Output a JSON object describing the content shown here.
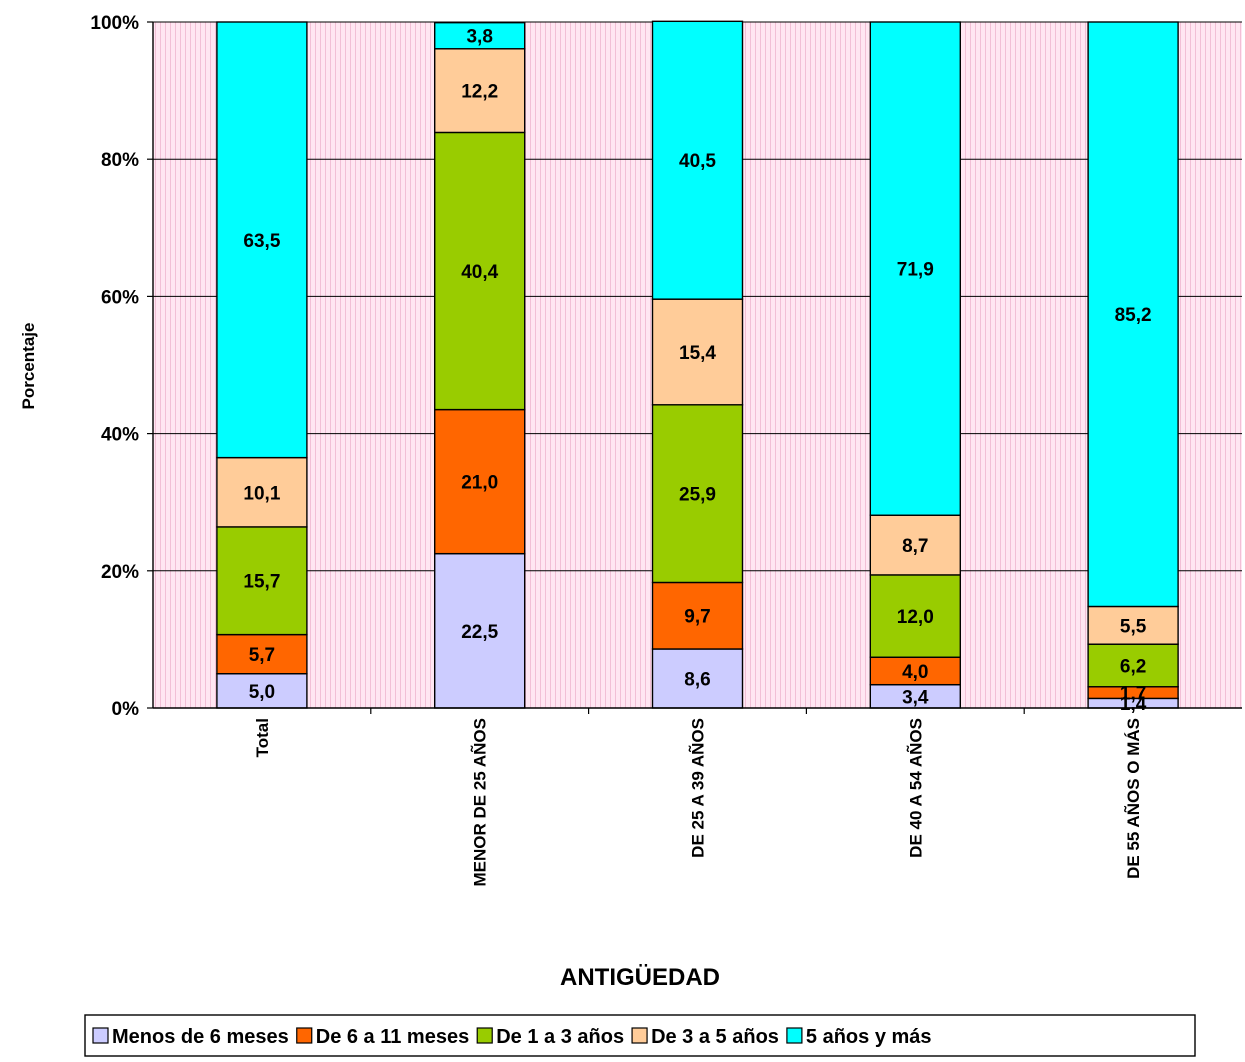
{
  "chart_data": {
    "type": "bar",
    "stacked": true,
    "percent_axis": true,
    "title": "",
    "xlabel": "ANTIGÜEDAD",
    "ylabel": "Porcentaje",
    "ylim": [
      0,
      100
    ],
    "yticks": [
      "0%",
      "20%",
      "40%",
      "60%",
      "80%",
      "100%"
    ],
    "grid": true,
    "legend_position": "bottom",
    "categories": [
      "Total",
      "MENOR DE 25 AÑOS",
      "DE 25 A 39 AÑOS",
      "DE 40 A 54 AÑOS",
      "DE 55 AÑOS O MÁS"
    ],
    "series": [
      {
        "name": "Menos de 6 meses",
        "color": "#ccccff",
        "values": [
          5.0,
          22.5,
          8.6,
          3.4,
          1.4
        ],
        "labels": [
          "5,0",
          "22,5",
          "8,6",
          "3,4",
          "1,4"
        ]
      },
      {
        "name": "De 6 a 11 meses",
        "color": "#ff6600",
        "values": [
          5.7,
          21.0,
          9.7,
          4.0,
          1.7
        ],
        "labels": [
          "5,7",
          "21,0",
          "9,7",
          "4,0",
          "1,7"
        ]
      },
      {
        "name": "De 1 a 3 años",
        "color": "#99cc00",
        "values": [
          15.7,
          40.4,
          25.9,
          12.0,
          6.2
        ],
        "labels": [
          "15,7",
          "40,4",
          "25,9",
          "12,0",
          "6,2"
        ]
      },
      {
        "name": "De 3 a 5 años",
        "color": "#ffcc99",
        "values": [
          10.1,
          12.2,
          15.4,
          8.7,
          5.5
        ],
        "labels": [
          "10,1",
          "12,2",
          "15,4",
          "8,7",
          "5,5"
        ]
      },
      {
        "name": "5 años y más",
        "color": "#00ffff",
        "values": [
          63.5,
          3.8,
          40.5,
          71.9,
          85.2
        ],
        "labels": [
          "63,5",
          "3,8",
          "40,5",
          "71,9",
          "85,2"
        ]
      }
    ],
    "plot_background": "#ffe6f2",
    "stripe_color": "#f2bfd6"
  }
}
